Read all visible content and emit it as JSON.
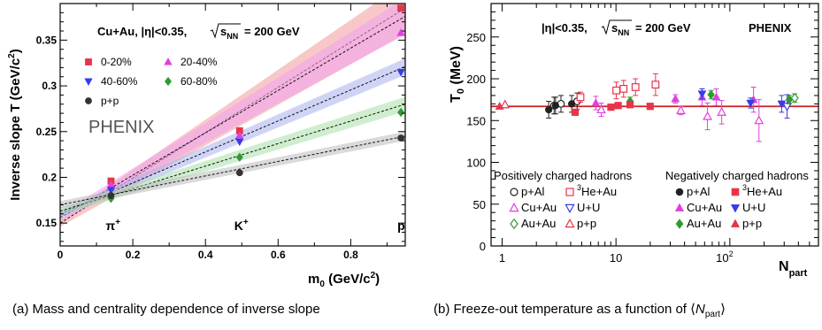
{
  "chart_data": [
    {
      "type": "scatter",
      "panel_caption": "(a) Mass and centrality dependence of inverse slope",
      "header": "Cu+Au, |η|<0.35,",
      "energy_label": "= 200 GeV",
      "sqrt_label": "s",
      "sqrt_sub": "NN",
      "watermark": "PHENIX",
      "ylabel_main": "Inverse slope T (GeV/c",
      "ylabel_tail": ")",
      "xlabel_main": "m",
      "xlabel_sub": "0",
      "xlabel_tail": " (GeV/c",
      "xlabel_end": ")",
      "xlim": [
        0,
        0.95
      ],
      "ylim": [
        0.125,
        0.39
      ],
      "x_ticks": [
        "0",
        "0.2",
        "0.4",
        "0.6",
        "0.8"
      ],
      "x_tick_values": [
        0,
        0.2,
        0.4,
        0.6,
        0.8
      ],
      "y_ticks": [
        "0.15",
        "0.2",
        "0.25",
        "0.3",
        "0.35"
      ],
      "y_tick_values": [
        0.15,
        0.2,
        0.25,
        0.3,
        0.35
      ],
      "particles": [
        {
          "label": "π",
          "sup": "+",
          "x": 0.14
        },
        {
          "label": "K",
          "sup": "+",
          "x": 0.494
        },
        {
          "label": "p",
          "sup": "",
          "x": 0.938
        }
      ],
      "x": [
        0.14,
        0.494,
        0.938
      ],
      "series": [
        {
          "name": "0-20%",
          "color": "#e8344b",
          "marker": "square",
          "values": [
            0.196,
            0.251,
            0.385
          ],
          "fit": [
            0.15,
            0.385
          ],
          "band": "#f29a9a"
        },
        {
          "name": "20-40%",
          "color": "#e040e0",
          "marker": "triangle-up",
          "values": [
            0.192,
            0.246,
            0.358
          ],
          "fit": [
            0.156,
            0.376
          ],
          "band": "#f0a0f0"
        },
        {
          "name": "40-60%",
          "color": "#3a3ae8",
          "marker": "triangle-down",
          "values": [
            0.186,
            0.239,
            0.315
          ],
          "fit": [
            0.16,
            0.321
          ],
          "band": "#a8b0f0"
        },
        {
          "name": "60-80%",
          "color": "#2e9b2e",
          "marker": "diamond",
          "values": [
            0.177,
            0.222,
            0.271
          ],
          "fit": [
            0.163,
            0.28
          ],
          "band": "#a8e0a8"
        },
        {
          "name": "p+p",
          "color": "#333333",
          "marker": "circle",
          "values": [
            0.18,
            0.205,
            0.243
          ],
          "fit": [
            0.17,
            0.245
          ],
          "band": "#bbbbbb"
        }
      ]
    },
    {
      "type": "scatter",
      "panel_caption_prefix": "(b) Freeze-out temperature as a function of ⟨",
      "panel_caption_N": "N",
      "panel_caption_sub": "part",
      "panel_caption_suffix": "⟩",
      "header": "|η|<0.35,",
      "energy_label": "= 200 GeV",
      "sqrt_label": "s",
      "sqrt_sub": "NN",
      "watermark": "PHENIX",
      "ylabel_main": "T",
      "ylabel_sub": "0",
      "ylabel_tail": " (MeV)",
      "xlabel_main": "N",
      "xlabel_sub": "part",
      "x_scale": "log",
      "xlim": [
        0.8,
        600
      ],
      "ylim": [
        0,
        290
      ],
      "x_ticks": [
        "1",
        "10",
        "10"
      ],
      "x_tick_sup": [
        "",
        "",
        "2"
      ],
      "x_tick_values": [
        1,
        10,
        100
      ],
      "y_ticks": [
        "0",
        "50",
        "100",
        "150",
        "200",
        "250"
      ],
      "y_tick_values": [
        0,
        50,
        100,
        150,
        200,
        250
      ],
      "reference_line": 167,
      "reference_color": "#cc2222",
      "legend_pos_title": "Positively charged hadrons",
      "legend_neg_title": "Negatively charged hadrons",
      "series": [
        {
          "name": "p+Al",
          "group": "pos",
          "marker": "circle-open",
          "color": "#222222",
          "x": [
            2.7,
            3.1,
            4.3
          ],
          "values": [
            168,
            170,
            173
          ],
          "err": [
            10,
            10,
            10
          ]
        },
        {
          "name": "Cu+Au",
          "group": "pos",
          "marker": "triangle-up-open",
          "color": "#e040e0",
          "x": [
            7,
            35,
            60,
            80,
            170
          ],
          "values": [
            163,
            162,
            155,
            160,
            150
          ],
          "err": [
            8,
            5,
            16,
            14,
            25
          ]
        },
        {
          "name": "Au+Au",
          "group": "pos",
          "marker": "diamond-open",
          "color": "#2e9b2e",
          "x": [
            350
          ],
          "values": [
            177
          ],
          "err": [
            5
          ]
        },
        {
          "name": "3He+Au",
          "sup": "3",
          "group": "pos",
          "marker": "square-open",
          "color": "#e8344b",
          "x": [
            4.6,
            9.5,
            11,
            14,
            21
          ],
          "values": [
            178,
            186,
            188,
            190,
            193
          ],
          "err": [
            6,
            10,
            10,
            10,
            13
          ]
        },
        {
          "name": "U+U",
          "group": "pos",
          "marker": "triangle-down-open",
          "color": "#3a3ae8",
          "x": [
            300
          ],
          "values": [
            167
          ],
          "err": [
            14
          ]
        },
        {
          "name": "p+p",
          "group": "pos",
          "marker": "triangle-up-open",
          "color": "#e8344b",
          "x": [
            1
          ],
          "values": [
            169
          ],
          "err": [
            0
          ]
        },
        {
          "name": "p+Al",
          "group": "neg",
          "marker": "circle",
          "color": "#222222",
          "x": [
            2.7,
            3.1,
            4.3
          ],
          "values": [
            163,
            168,
            170
          ],
          "err": [
            10,
            10,
            10
          ]
        },
        {
          "name": "Cu+Au",
          "group": "neg",
          "marker": "triangle-up",
          "color": "#e040e0",
          "x": [
            7,
            35,
            60,
            80,
            170
          ],
          "values": [
            171,
            176,
            178,
            178,
            175
          ],
          "err": [
            8,
            5,
            10,
            10,
            15
          ]
        },
        {
          "name": "Au+Au",
          "group": "neg",
          "marker": "diamond",
          "color": "#2e9b2e",
          "x": [
            14,
            72,
            350
          ],
          "values": [
            173,
            181,
            175
          ],
          "err": [
            5,
            5,
            5
          ]
        },
        {
          "name": "3He+Au",
          "sup": "3",
          "group": "neg",
          "marker": "square",
          "color": "#e8344b",
          "x": [
            4.6,
            9.5,
            11,
            14,
            21
          ],
          "values": [
            160,
            166,
            168,
            169,
            167
          ],
          "err": [
            0,
            0,
            0,
            0,
            0
          ]
        },
        {
          "name": "U+U",
          "group": "neg",
          "marker": "triangle-down",
          "color": "#3a3ae8",
          "x": [
            60,
            160,
            300
          ],
          "values": [
            182,
            171,
            170
          ],
          "err": [
            6,
            6,
            10
          ]
        },
        {
          "name": "p+p",
          "group": "neg",
          "marker": "triangle-up",
          "color": "#e8344b",
          "x": [
            1
          ],
          "values": [
            167
          ],
          "err": [
            0
          ]
        }
      ]
    }
  ]
}
